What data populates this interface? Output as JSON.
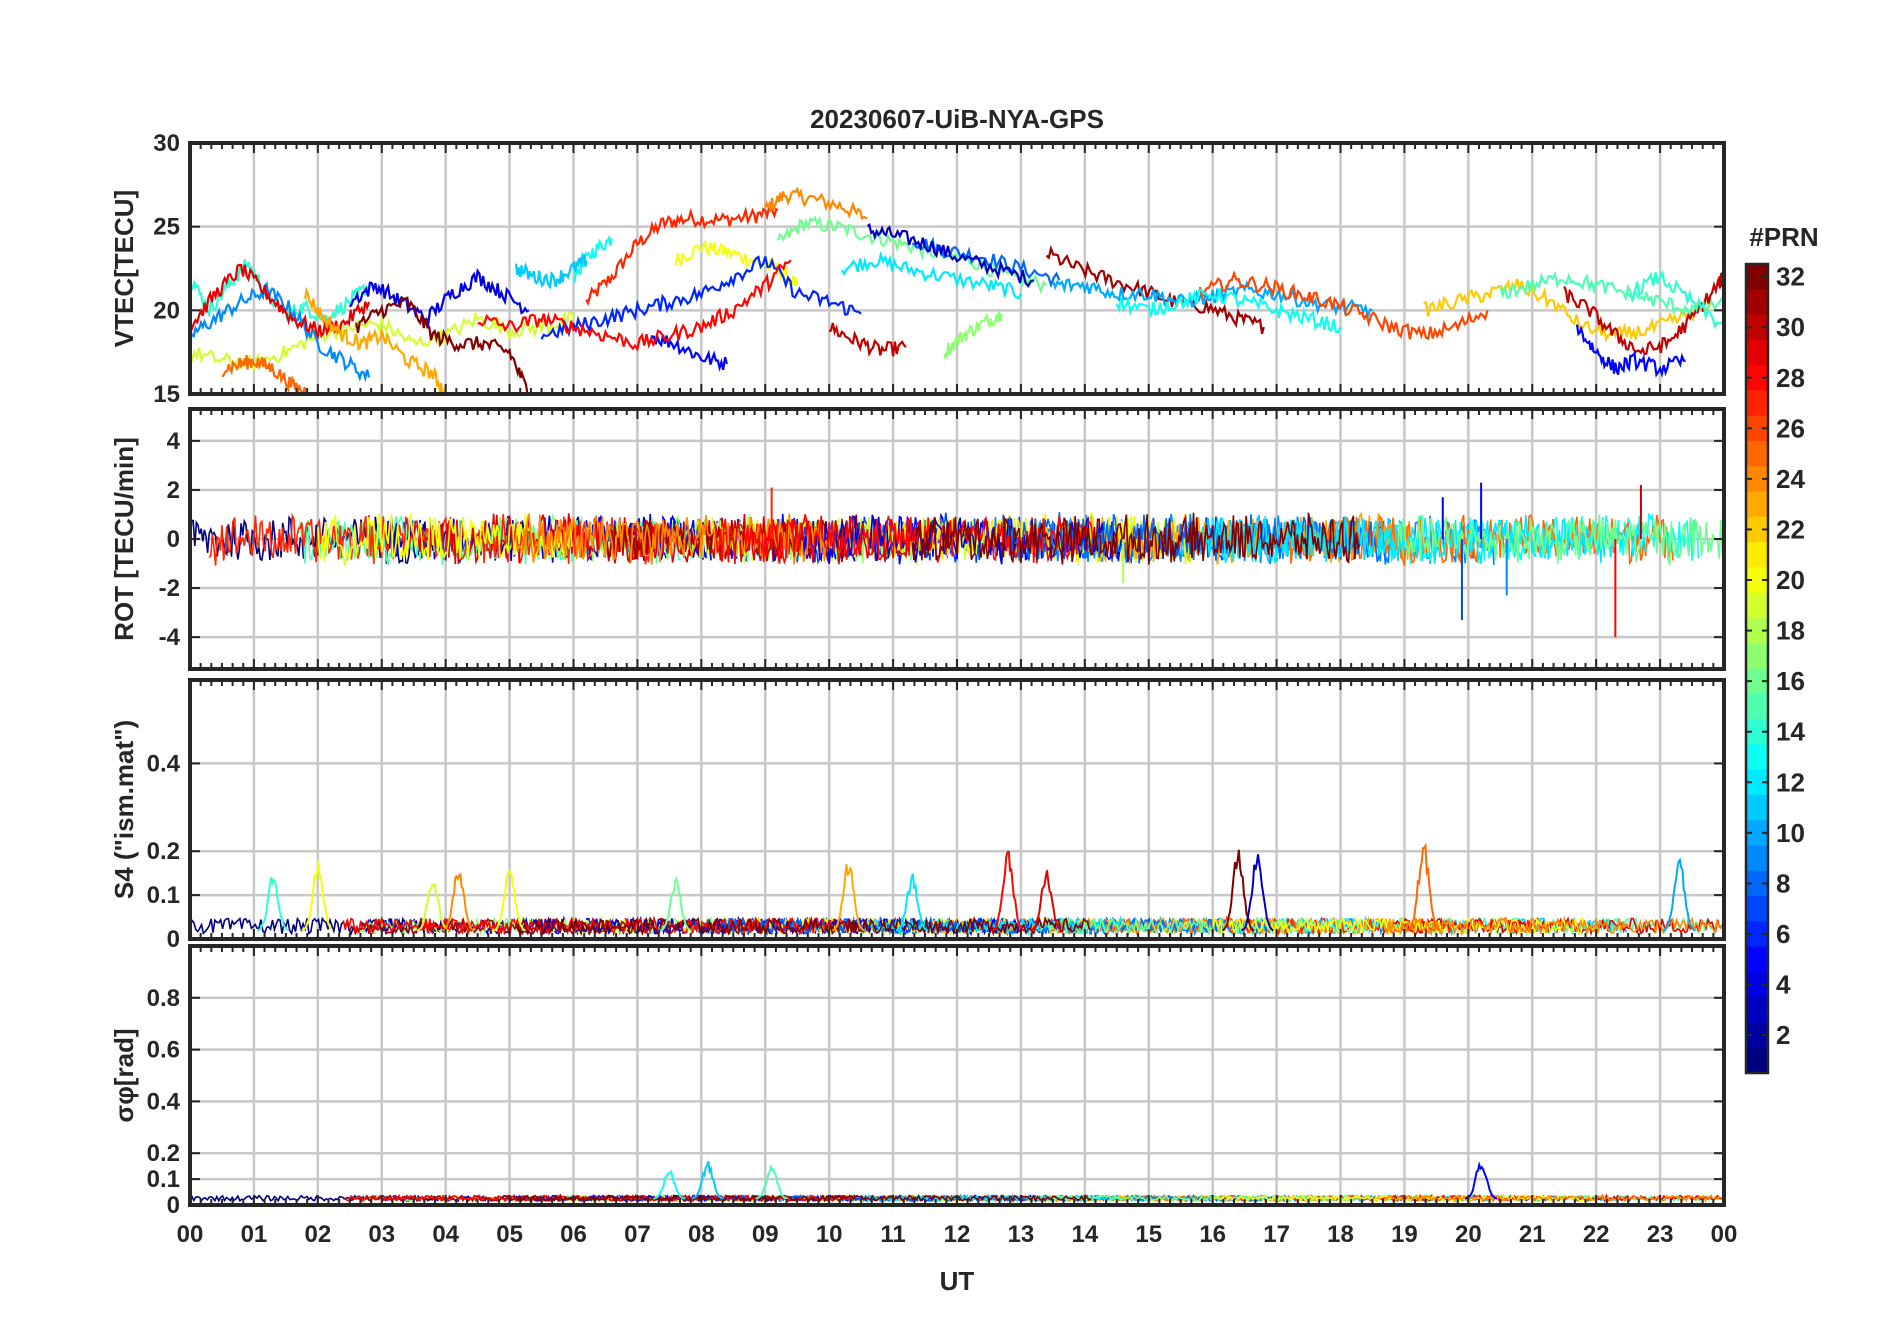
{
  "chart_data": {
    "type": "line",
    "title": "20230607-UiB-NYA-GPS",
    "xlabel": "UT",
    "x_tick_labels": [
      "00",
      "01",
      "02",
      "03",
      "04",
      "05",
      "06",
      "07",
      "08",
      "09",
      "10",
      "11",
      "12",
      "13",
      "14",
      "15",
      "16",
      "17",
      "18",
      "19",
      "20",
      "21",
      "22",
      "23",
      "00"
    ],
    "xlim_hours": [
      0,
      24
    ],
    "grid": true,
    "colorbar": {
      "title": "#PRN",
      "range": [
        1,
        32
      ],
      "colormap": "jet",
      "ticks": [
        2,
        4,
        6,
        8,
        10,
        12,
        14,
        16,
        18,
        20,
        22,
        24,
        26,
        28,
        30,
        32
      ]
    },
    "panels": [
      {
        "id": "vtec",
        "ylabel": "VTEC[TECU]",
        "ylim": [
          15,
          30
        ],
        "yticks": [
          15,
          20,
          25,
          30
        ],
        "ytick_labels": [
          "15",
          "20",
          "25",
          "30"
        ],
        "series": [
          {
            "prn": 27,
            "x": [
              6.2,
              6.6,
              7.0,
              7.4,
              7.8,
              8.3,
              8.8,
              9.2
            ],
            "y": [
              20.5,
              22.0,
              24.0,
              25.2,
              25.5,
              25.4,
              25.6,
              26.0
            ]
          },
          {
            "prn": 24,
            "x": [
              9.0,
              9.3,
              9.7,
              10.2,
              10.6
            ],
            "y": [
              26.0,
              26.9,
              26.7,
              26.2,
              25.5
            ]
          },
          {
            "prn": 20,
            "x": [
              7.6,
              8.0,
              8.4,
              8.8,
              9.2,
              9.5
            ],
            "y": [
              23.0,
              23.8,
              23.5,
              23.0,
              22.5,
              21.5
            ]
          },
          {
            "prn": 16,
            "x": [
              9.2,
              9.6,
              10.1,
              10.6,
              11.1,
              11.6,
              12.2,
              12.8,
              13.4
            ],
            "y": [
              24.0,
              25.2,
              25.0,
              24.5,
              24.0,
              23.5,
              23.0,
              22.0,
              21.5
            ]
          },
          {
            "prn": 13,
            "x": [
              6.0,
              6.3,
              6.6
            ],
            "y": [
              22.0,
              23.5,
              24.3
            ]
          },
          {
            "prn": 8,
            "x": [
              11.3,
              11.8,
              12.4,
              13.0,
              13.6
            ],
            "y": [
              24.2,
              23.6,
              23.2,
              22.5,
              21.8
            ]
          },
          {
            "prn": 3,
            "x": [
              10.6,
              11.0,
              11.5,
              12.0,
              12.6,
              13.2
            ],
            "y": [
              24.8,
              24.5,
              24.0,
              23.2,
              22.5,
              21.8
            ]
          },
          {
            "prn": 12,
            "x": [
              10.2,
              10.7,
              11.2,
              11.8,
              12.5,
              13.0
            ],
            "y": [
              22.5,
              23.0,
              22.5,
              22.0,
              21.5,
              21.0
            ]
          },
          {
            "prn": 30,
            "x": [
              10.0,
              10.4,
              10.8,
              11.2
            ],
            "y": [
              19.0,
              18.2,
              17.6,
              17.8
            ]
          },
          {
            "prn": 31,
            "x": [
              13.4,
              13.9,
              14.4,
              14.9,
              15.4,
              15.9,
              16.4,
              16.8
            ],
            "y": [
              23.4,
              22.5,
              21.8,
              21.2,
              20.5,
              20.2,
              19.5,
              19.0
            ]
          },
          {
            "prn": 5,
            "x": [
              7.2,
              7.6,
              8.0,
              8.4
            ],
            "y": [
              18.5,
              18.0,
              17.2,
              16.8
            ]
          },
          {
            "prn": 17,
            "x": [
              11.8,
              12.1,
              12.4,
              12.7
            ],
            "y": [
              17.5,
              18.5,
              19.2,
              19.8
            ]
          },
          {
            "prn": 14,
            "x": [
              0.0,
              0.3,
              0.6,
              0.9,
              1.2,
              1.5,
              1.8,
              2.1,
              2.5,
              2.8
            ],
            "y": [
              22.0,
              20.0,
              21.5,
              22.8,
              21.0,
              19.8,
              20.2,
              19.5,
              20.5,
              21.5
            ]
          },
          {
            "prn": 19,
            "x": [
              0.0,
              0.5,
              1.0,
              1.5,
              2.0,
              2.5,
              3.0,
              3.5,
              4.0,
              4.5,
              5.0,
              5.5,
              6.0
            ],
            "y": [
              17.5,
              17.0,
              16.8,
              17.5,
              18.5,
              19.0,
              19.2,
              18.0,
              18.5,
              19.5,
              18.8,
              19.0,
              19.5
            ]
          },
          {
            "prn": 9,
            "x": [
              0.0,
              0.4,
              0.8,
              1.2,
              1.6,
              2.0,
              2.4,
              2.8
            ],
            "y": [
              18.5,
              19.5,
              20.5,
              21.2,
              20.0,
              18.0,
              17.0,
              16.0
            ]
          },
          {
            "prn": 4,
            "x": [
              2.5,
              2.9,
              3.3,
              3.7,
              4.1,
              4.5,
              4.9,
              5.3
            ],
            "y": [
              20.5,
              21.5,
              20.5,
              19.5,
              21.0,
              22.0,
              21.0,
              20.0
            ]
          },
          {
            "prn": 29,
            "x": [
              0.0,
              0.4,
              0.8,
              1.2,
              1.6,
              2.0,
              2.4,
              2.8
            ],
            "y": [
              19.0,
              21.0,
              22.5,
              21.0,
              19.5,
              18.8,
              19.2,
              20.5
            ]
          },
          {
            "prn": 32,
            "x": [
              2.6,
              3.0,
              3.4,
              3.8,
              4.2,
              4.6,
              5.0,
              5.3
            ],
            "y": [
              19.0,
              20.0,
              20.5,
              18.5,
              18.0,
              18.0,
              17.5,
              15.0
            ]
          },
          {
            "prn": 25,
            "x": [
              0.5,
              0.8,
              1.0,
              1.3,
              1.6,
              1.9
            ],
            "y": [
              16.5,
              16.8,
              17.0,
              16.5,
              15.5,
              15.0
            ]
          },
          {
            "prn": 23,
            "x": [
              1.8,
              2.1,
              2.4,
              2.7,
              3.0,
              3.4,
              3.8,
              4.0
            ],
            "y": [
              21.0,
              19.5,
              18.5,
              18.0,
              18.5,
              17.0,
              16.2,
              15.0
            ]
          },
          {
            "prn": 11,
            "x": [
              5.1,
              5.4,
              5.7,
              6.0,
              6.2
            ],
            "y": [
              22.5,
              22.0,
              21.8,
              22.5,
              23.0
            ]
          },
          {
            "prn": 6,
            "x": [
              5.5,
              6.0,
              6.5,
              7.0,
              7.5,
              8.0,
              8.5,
              9.0,
              9.5,
              10.0,
              10.5
            ],
            "y": [
              18.5,
              19.0,
              19.5,
              20.0,
              20.5,
              21.0,
              22.0,
              23.0,
              21.0,
              20.5,
              19.8
            ]
          },
          {
            "prn": 28,
            "x": [
              4.5,
              5.0,
              5.5,
              6.0,
              6.5,
              7.0,
              7.5,
              8.0,
              8.5,
              9.0,
              9.4
            ],
            "y": [
              19.5,
              19.0,
              19.5,
              19.0,
              18.5,
              18.0,
              18.5,
              19.0,
              20.0,
              21.5,
              23.0
            ]
          },
          {
            "prn": 10,
            "x": [
              13.5,
              14.0,
              14.5,
              15.0,
              15.5,
              16.0,
              16.5,
              17.0,
              17.5,
              18.0,
              18.5
            ],
            "y": [
              21.5,
              21.5,
              21.0,
              21.0,
              20.5,
              20.8,
              21.2,
              21.0,
              20.5,
              20.2,
              20.0
            ]
          },
          {
            "prn": 26,
            "x": [
              15.8,
              16.3,
              16.8,
              17.3,
              17.8,
              18.3,
              18.8,
              19.3,
              19.8,
              20.3
            ],
            "y": [
              21.0,
              21.8,
              21.5,
              21.0,
              20.5,
              19.8,
              19.0,
              18.5,
              19.0,
              20.0
            ]
          },
          {
            "prn": 13,
            "x": [
              14.5,
              15.0,
              15.5,
              16.0,
              16.5,
              17.0,
              17.5,
              18.0
            ],
            "y": [
              20.5,
              20.0,
              20.5,
              21.0,
              20.5,
              20.0,
              19.5,
              19.0
            ]
          },
          {
            "prn": 22,
            "x": [
              19.3,
              19.8,
              20.3,
              20.8,
              21.3,
              21.8,
              22.3,
              22.8,
              23.3,
              23.8
            ],
            "y": [
              20.0,
              20.5,
              21.0,
              21.5,
              20.5,
              19.0,
              18.5,
              18.8,
              19.5,
              20.5
            ]
          },
          {
            "prn": 15,
            "x": [
              20.5,
              21.0,
              21.5,
              22.0,
              22.5,
              23.0,
              23.5,
              24.0
            ],
            "y": [
              21.0,
              21.5,
              22.0,
              21.5,
              21.0,
              20.5,
              20.0,
              20.5
            ]
          },
          {
            "prn": 30,
            "x": [
              21.5,
              21.9,
              22.3,
              22.7,
              23.1,
              23.5,
              23.9,
              24.0
            ],
            "y": [
              21.0,
              20.0,
              18.5,
              17.5,
              18.0,
              19.5,
              21.5,
              22.0
            ]
          },
          {
            "prn": 5,
            "x": [
              21.7,
              22.0,
              22.3,
              22.6,
              23.0,
              23.4
            ],
            "y": [
              19.0,
              17.5,
              16.5,
              17.0,
              16.5,
              17.0
            ]
          },
          {
            "prn": 14,
            "x": [
              22.5,
              23.0,
              23.5,
              24.0
            ],
            "y": [
              21.0,
              22.0,
              20.5,
              19.0
            ]
          }
        ]
      },
      {
        "id": "rot",
        "ylabel": "ROT [TECU/min]",
        "ylim": [
          -5.3,
          5.3
        ],
        "yticks": [
          -4,
          -2,
          0,
          2,
          4
        ],
        "ytick_labels": [
          "-4",
          "-2",
          "0",
          "2",
          "4"
        ],
        "spikes": [
          {
            "prn": 7,
            "x": 19.9,
            "y": -3.3
          },
          {
            "prn": 5,
            "x": 20.2,
            "y": 2.3
          },
          {
            "prn": 28,
            "x": 22.3,
            "y": -4.0
          },
          {
            "prn": 30,
            "x": 22.7,
            "y": 2.2
          },
          {
            "prn": 27,
            "x": 9.1,
            "y": 2.1
          },
          {
            "prn": 9,
            "x": 20.6,
            "y": -2.3
          },
          {
            "prn": 18,
            "x": 14.6,
            "y": -1.8
          },
          {
            "prn": 4,
            "x": 19.6,
            "y": 1.7
          }
        ]
      },
      {
        "id": "s4",
        "ylabel": "S4 (\"ism.mat\")",
        "ylim": [
          0,
          0.59
        ],
        "yticks": [
          0,
          0.1,
          0.2,
          0.4
        ],
        "ytick_labels": [
          "0",
          "0.1",
          "0.2",
          "0.4"
        ],
        "peaks": [
          {
            "prn": 14,
            "x": 1.3,
            "y": 0.15
          },
          {
            "prn": 20,
            "x": 2.0,
            "y": 0.18
          },
          {
            "prn": 19,
            "x": 3.8,
            "y": 0.15
          },
          {
            "prn": 24,
            "x": 4.2,
            "y": 0.17
          },
          {
            "prn": 20,
            "x": 5.0,
            "y": 0.18
          },
          {
            "prn": 16,
            "x": 7.6,
            "y": 0.14
          },
          {
            "prn": 23,
            "x": 10.3,
            "y": 0.19
          },
          {
            "prn": 12,
            "x": 11.3,
            "y": 0.15
          },
          {
            "prn": 28,
            "x": 12.8,
            "y": 0.21
          },
          {
            "prn": 29,
            "x": 13.4,
            "y": 0.16
          },
          {
            "prn": 32,
            "x": 16.4,
            "y": 0.21
          },
          {
            "prn": 3,
            "x": 16.7,
            "y": 0.21
          },
          {
            "prn": 25,
            "x": 19.3,
            "y": 0.23
          },
          {
            "prn": 10,
            "x": 23.3,
            "y": 0.19
          }
        ]
      },
      {
        "id": "sigma_phi",
        "ylabel": "σφ[rad]",
        "ylim": [
          0,
          1
        ],
        "yticks": [
          0,
          0.1,
          0.2,
          0.4,
          0.6,
          0.8
        ],
        "ytick_labels": [
          "0",
          "0.1",
          "0.2",
          "0.4",
          "0.6",
          "0.8"
        ],
        "peaks": [
          {
            "prn": 11,
            "x": 8.1,
            "y": 0.17
          },
          {
            "prn": 15,
            "x": 9.1,
            "y": 0.16
          },
          {
            "prn": 5,
            "x": 20.2,
            "y": 0.18
          },
          {
            "prn": 13,
            "x": 7.5,
            "y": 0.14
          }
        ]
      }
    ]
  }
}
